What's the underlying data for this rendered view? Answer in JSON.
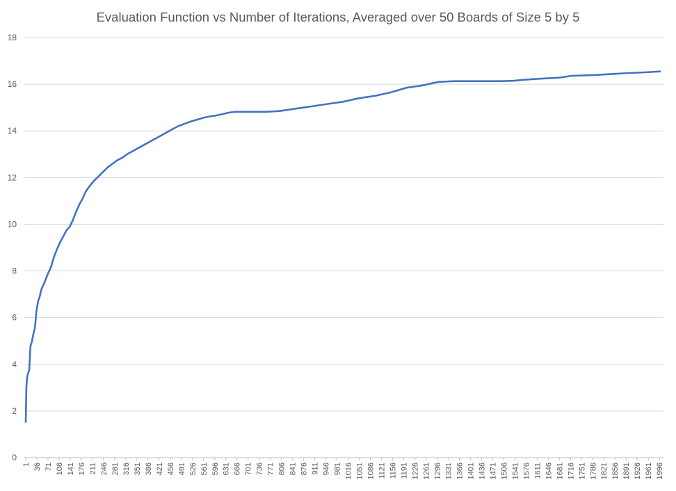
{
  "chart_data": {
    "type": "line",
    "title": "Evaluation Function vs Number of Iterations, Averaged over 50 Boards of Size 5 by 5",
    "xlabel": "",
    "ylabel": "",
    "ylim": [
      0,
      18
    ],
    "yticks": [
      0,
      2,
      4,
      6,
      8,
      10,
      12,
      14,
      16,
      18
    ],
    "xlim": [
      1,
      2000
    ],
    "xtick_labels": [
      "1",
      "36",
      "71",
      "106",
      "141",
      "176",
      "211",
      "246",
      "281",
      "316",
      "351",
      "386",
      "421",
      "456",
      "491",
      "526",
      "561",
      "596",
      "631",
      "666",
      "701",
      "736",
      "771",
      "806",
      "841",
      "876",
      "911",
      "946",
      "981",
      "1016",
      "1051",
      "1086",
      "1121",
      "1156",
      "1191",
      "1226",
      "1261",
      "1296",
      "1331",
      "1366",
      "1401",
      "1436",
      "1471",
      "1506",
      "1541",
      "1576",
      "1611",
      "1646",
      "1681",
      "1716",
      "1751",
      "1786",
      "1821",
      "1856",
      "1891",
      "1926",
      "1961",
      "1996"
    ],
    "grid": "horizontal",
    "legend": "none",
    "line_color": "#4472c4",
    "grid_color": "#d9d9d9",
    "series": [
      {
        "x": [
          1,
          3,
          5,
          8,
          12,
          16,
          20,
          25,
          30,
          35,
          40,
          45,
          50,
          60,
          70,
          80,
          90,
          100,
          110,
          120,
          130,
          140,
          150,
          160,
          170,
          180,
          190,
          200,
          215,
          230,
          245,
          260,
          275,
          290,
          305,
          320,
          340,
          360,
          380,
          400,
          420,
          440,
          460,
          480,
          500,
          520,
          540,
          560,
          580,
          600,
          620,
          640,
          660,
          700,
          760,
          800,
          850,
          900,
          950,
          1000,
          1050,
          1100,
          1150,
          1200,
          1250,
          1300,
          1350,
          1400,
          1450,
          1500,
          1540,
          1560,
          1600,
          1640,
          1680,
          1700,
          1720,
          1760,
          1800,
          1850,
          1900,
          1950,
          2000
        ],
        "values": [
          1.5,
          3.0,
          3.4,
          3.6,
          3.75,
          4.8,
          4.95,
          5.3,
          5.55,
          6.3,
          6.7,
          6.9,
          7.2,
          7.5,
          7.85,
          8.15,
          8.6,
          8.95,
          9.25,
          9.5,
          9.75,
          9.9,
          10.2,
          10.55,
          10.85,
          11.1,
          11.4,
          11.6,
          11.85,
          12.05,
          12.25,
          12.45,
          12.6,
          12.75,
          12.85,
          13.0,
          13.15,
          13.3,
          13.45,
          13.6,
          13.75,
          13.9,
          14.05,
          14.2,
          14.3,
          14.4,
          14.48,
          14.56,
          14.62,
          14.66,
          14.72,
          14.78,
          14.82,
          14.82,
          14.82,
          14.85,
          14.95,
          15.05,
          15.15,
          15.25,
          15.4,
          15.5,
          15.65,
          15.85,
          15.95,
          16.1,
          16.13,
          16.13,
          16.13,
          16.13,
          16.15,
          16.18,
          16.22,
          16.25,
          16.28,
          16.32,
          16.36,
          16.38,
          16.4,
          16.44,
          16.48,
          16.51,
          16.55
        ]
      }
    ]
  }
}
